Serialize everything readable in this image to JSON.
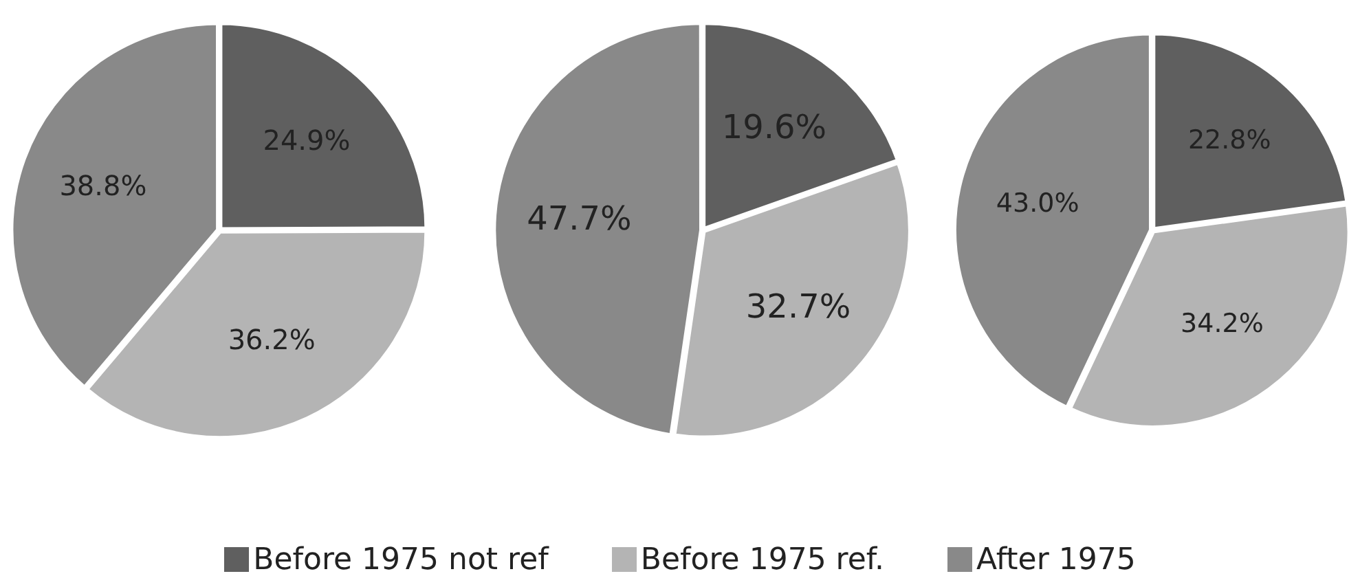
{
  "chart_data": [
    {
      "type": "pie",
      "categories": [
        "Before 1975 not ref",
        "Before 1975 ref.",
        "After 1975"
      ],
      "values": [
        24.9,
        36.2,
        38.8
      ],
      "value_labels": [
        "24.9%",
        "36.2%",
        "38.8%"
      ],
      "colors": [
        "#5f5f5f",
        "#b4b4b4",
        "#898989"
      ],
      "legend": "bottom"
    },
    {
      "type": "pie",
      "categories": [
        null,
        null,
        null
      ],
      "values": [
        19.6,
        32.7,
        47.7
      ],
      "value_labels": [
        "19.6%",
        "32.7%",
        "47.7%"
      ],
      "colors": [
        "#5f5f5f",
        "#b4b4b4",
        "#898989"
      ]
    },
    {
      "type": "pie",
      "categories": [
        null,
        null,
        null
      ],
      "values": [
        22.8,
        34.2,
        43.0
      ],
      "value_labels": [
        "22.8%",
        "34.2%",
        "43.0%"
      ],
      "colors": [
        "#5f5f5f",
        "#b4b4b4",
        "#898989"
      ]
    }
  ]
}
